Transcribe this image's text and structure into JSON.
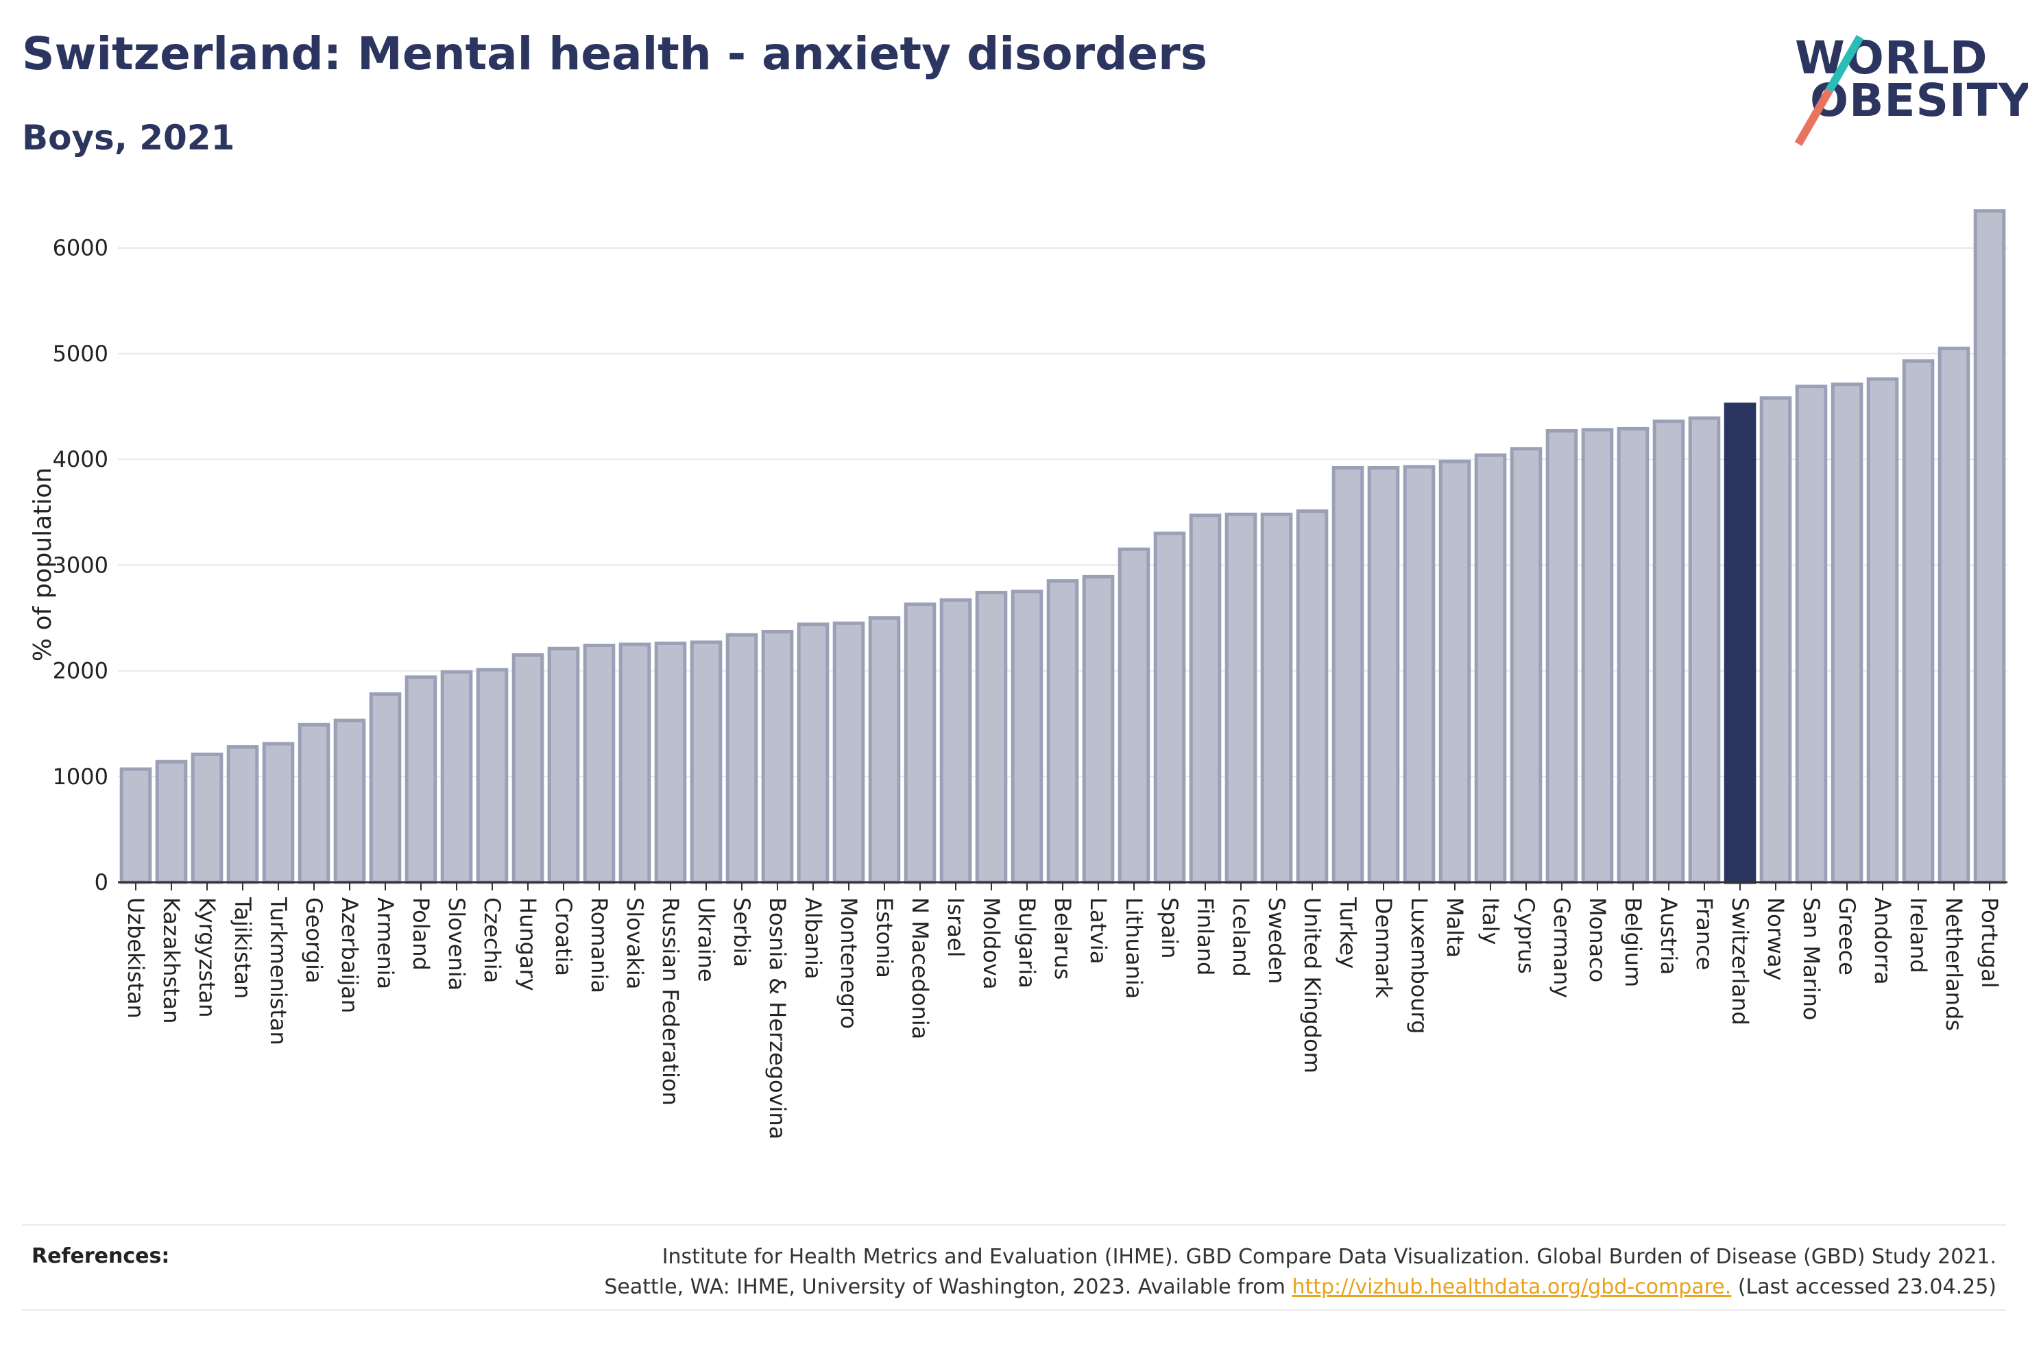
{
  "header": {
    "title": "Switzerland: Mental health - anxiety disorders",
    "subtitle": "Boys, 2021"
  },
  "logo": {
    "line1": "WORLD",
    "line2": "OBESITY",
    "accent_top": "#2bbcb8",
    "accent_bottom": "#e8735f"
  },
  "colors": {
    "bar": "#bcc0ce",
    "bar_stroke": "#9aa0b6",
    "highlight": "#2b3560",
    "grid": "#e6e6ea",
    "axis": "#333333"
  },
  "chart_data": {
    "type": "bar",
    "title": "Switzerland: Mental health - anxiety disorders",
    "subtitle": "Boys, 2021",
    "ylabel": "% of population",
    "xlabel": "",
    "ylim": [
      0,
      6400
    ],
    "yticks": [
      0,
      1000,
      2000,
      3000,
      4000,
      5000,
      6000
    ],
    "grid": true,
    "highlight": "Switzerland",
    "categories": [
      "Uzbekistan",
      "Kazakhstan",
      "Kyrgyzstan",
      "Tajikistan",
      "Turkmenistan",
      "Georgia",
      "Azerbaijan",
      "Armenia",
      "Poland",
      "Slovenia",
      "Czechia",
      "Hungary",
      "Croatia",
      "Romania",
      "Slovakia",
      "Russian Federation",
      "Ukraine",
      "Serbia",
      "Bosnia & Herzegovina",
      "Albania",
      "Montenegro",
      "Estonia",
      "N Macedonia",
      "Israel",
      "Moldova",
      "Bulgaria",
      "Belarus",
      "Latvia",
      "Lithuania",
      "Spain",
      "Finland",
      "Iceland",
      "Sweden",
      "United Kingdom",
      "Turkey",
      "Denmark",
      "Luxembourg",
      "Malta",
      "Italy",
      "Cyprus",
      "Germany",
      "Monaco",
      "Belgium",
      "Austria",
      "France",
      "Switzerland",
      "Norway",
      "San Marino",
      "Greece",
      "Andorra",
      "Ireland",
      "Netherlands",
      "Portugal"
    ],
    "values": [
      1070,
      1140,
      1210,
      1280,
      1310,
      1490,
      1530,
      1780,
      1940,
      1990,
      2010,
      2150,
      2210,
      2240,
      2250,
      2260,
      2270,
      2340,
      2370,
      2440,
      2450,
      2500,
      2630,
      2670,
      2740,
      2750,
      2850,
      2890,
      3150,
      3300,
      3470,
      3480,
      3480,
      3510,
      3920,
      3920,
      3930,
      3980,
      4040,
      4100,
      4270,
      4280,
      4290,
      4360,
      4390,
      4520,
      4580,
      4690,
      4710,
      4760,
      4930,
      5050,
      6350
    ]
  },
  "references": {
    "label": "References:",
    "line1": "Institute for Health Metrics and Evaluation (IHME). GBD Compare Data Visualization. Global Burden of Disease (GBD) Study 2021.",
    "line2_prefix": "Seattle, WA: IHME, University of Washington, 2023. Available from",
    "link": "http://vizhub.healthdata.org/gbd-compare.",
    "line2_suffix": "(Last accessed 23.04.25)"
  }
}
